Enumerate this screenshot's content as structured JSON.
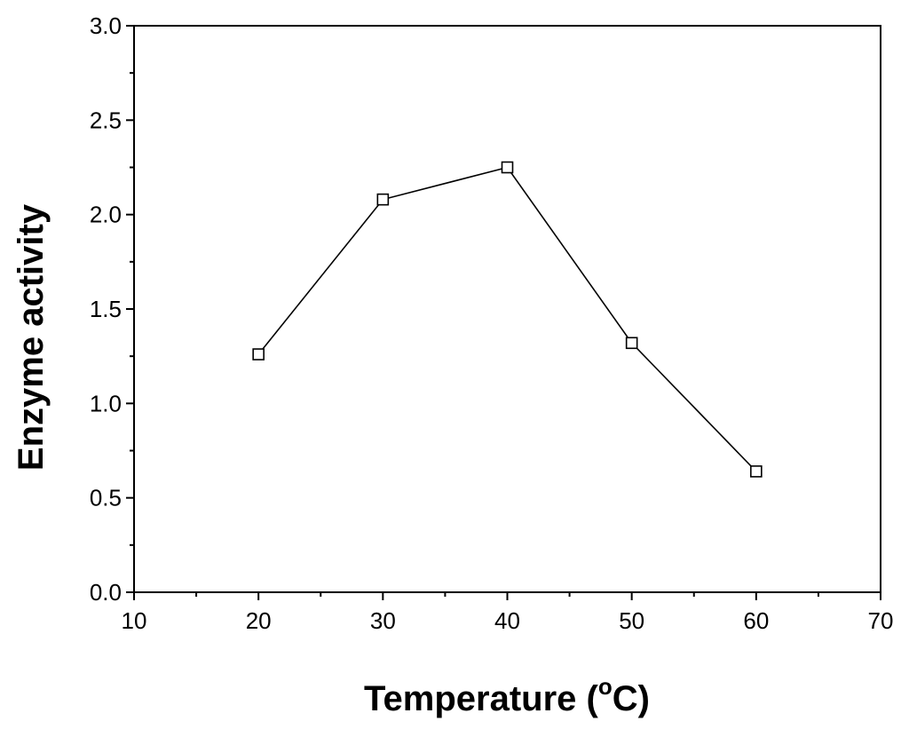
{
  "chart_data": {
    "type": "line",
    "title": "",
    "xlabel": "Temperature (",
    "xlabel_sup": "o",
    "xlabel_unit": "C)",
    "ylabel": "Enzyme activity",
    "xlim": [
      10,
      70
    ],
    "ylim": [
      0.0,
      3.0
    ],
    "x_ticks": [
      "10",
      "20",
      "30",
      "40",
      "50",
      "60",
      "70"
    ],
    "y_ticks": [
      "0.0",
      "0.5",
      "1.0",
      "1.5",
      "2.0",
      "2.5",
      "3.0"
    ],
    "grid": false,
    "legend": "none",
    "series": [
      {
        "marker": "open-square",
        "color": "#000000",
        "x": [
          20,
          30,
          40,
          50,
          60
        ],
        "y": [
          1.26,
          2.08,
          2.25,
          1.32,
          0.64
        ]
      }
    ]
  }
}
